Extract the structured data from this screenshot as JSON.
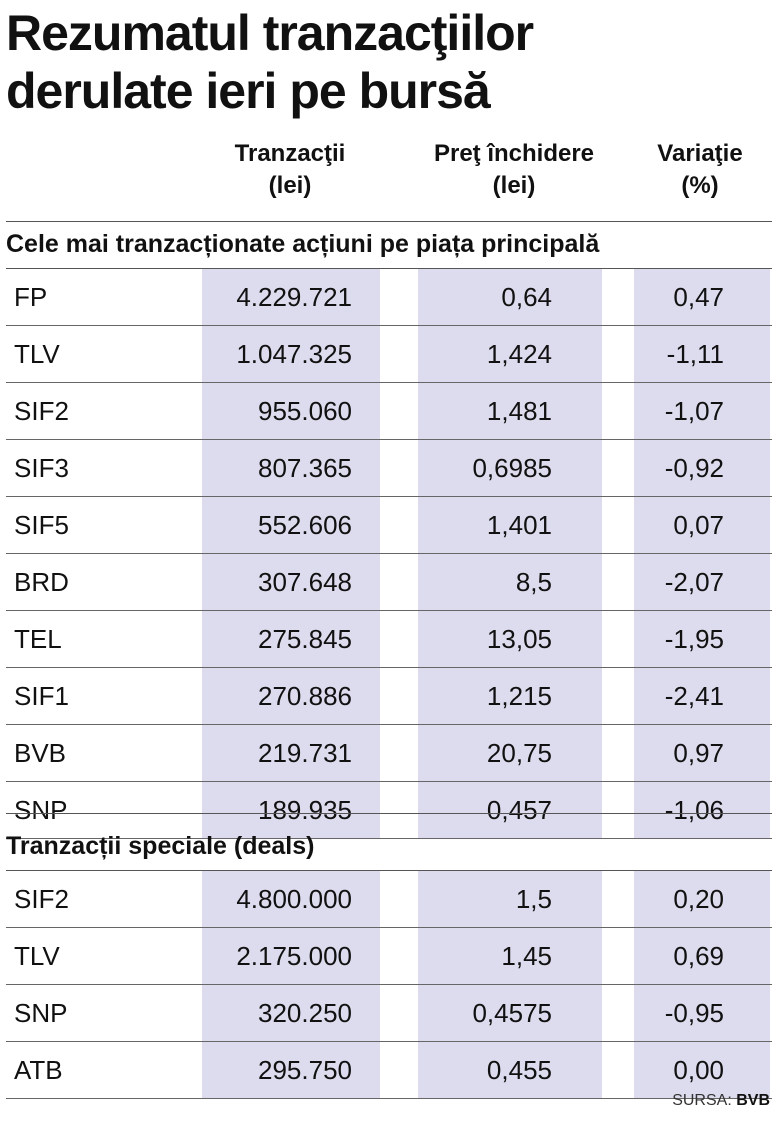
{
  "title_line1": "Rezumatul tranzacţiilor",
  "title_line2": "derulate ieri pe bursă",
  "columns": {
    "transactions": [
      "Tranzacţii",
      "(lei)"
    ],
    "close_price": [
      "Preţ închidere",
      "(lei)"
    ],
    "variation": [
      "Variaţie",
      "(%)"
    ]
  },
  "sections": [
    {
      "title": "Cele mai tranzacționate acțiuni pe piața principală",
      "rows": [
        {
          "symbol": "FP",
          "transactions": "4.229.721",
          "close_price": "0,64",
          "variation": "0,47"
        },
        {
          "symbol": "TLV",
          "transactions": "1.047.325",
          "close_price": "1,424",
          "variation": "-1,11"
        },
        {
          "symbol": "SIF2",
          "transactions": "955.060",
          "close_price": "1,481",
          "variation": "-1,07"
        },
        {
          "symbol": "SIF3",
          "transactions": "807.365",
          "close_price": "0,6985",
          "variation": "-0,92"
        },
        {
          "symbol": "SIF5",
          "transactions": "552.606",
          "close_price": "1,401",
          "variation": "0,07"
        },
        {
          "symbol": "BRD",
          "transactions": "307.648",
          "close_price": "8,5",
          "variation": "-2,07"
        },
        {
          "symbol": "TEL",
          "transactions": "275.845",
          "close_price": "13,05",
          "variation": "-1,95"
        },
        {
          "symbol": "SIF1",
          "transactions": "270.886",
          "close_price": "1,215",
          "variation": "-2,41"
        },
        {
          "symbol": "BVB",
          "transactions": "219.731",
          "close_price": "20,75",
          "variation": "0,97"
        },
        {
          "symbol": "SNP",
          "transactions": "189.935",
          "close_price": "0,457",
          "variation": "-1,06"
        }
      ]
    },
    {
      "title": "Tranzacții speciale (deals)",
      "rows": [
        {
          "symbol": "SIF2",
          "transactions": "4.800.000",
          "close_price": "1,5",
          "variation": "0,20"
        },
        {
          "symbol": "TLV",
          "transactions": "2.175.000",
          "close_price": "1,45",
          "variation": "0,69"
        },
        {
          "symbol": "SNP",
          "transactions": "320.250",
          "close_price": "0,4575",
          "variation": "-0,95"
        },
        {
          "symbol": "ATB",
          "transactions": "295.750",
          "close_price": "0,455",
          "variation": "0,00"
        }
      ]
    }
  ],
  "source_label": "SURSA:",
  "source_name": "BVB",
  "colors": {
    "column_shade": "#dcdcee",
    "text": "#111111",
    "rule": "#555555"
  }
}
